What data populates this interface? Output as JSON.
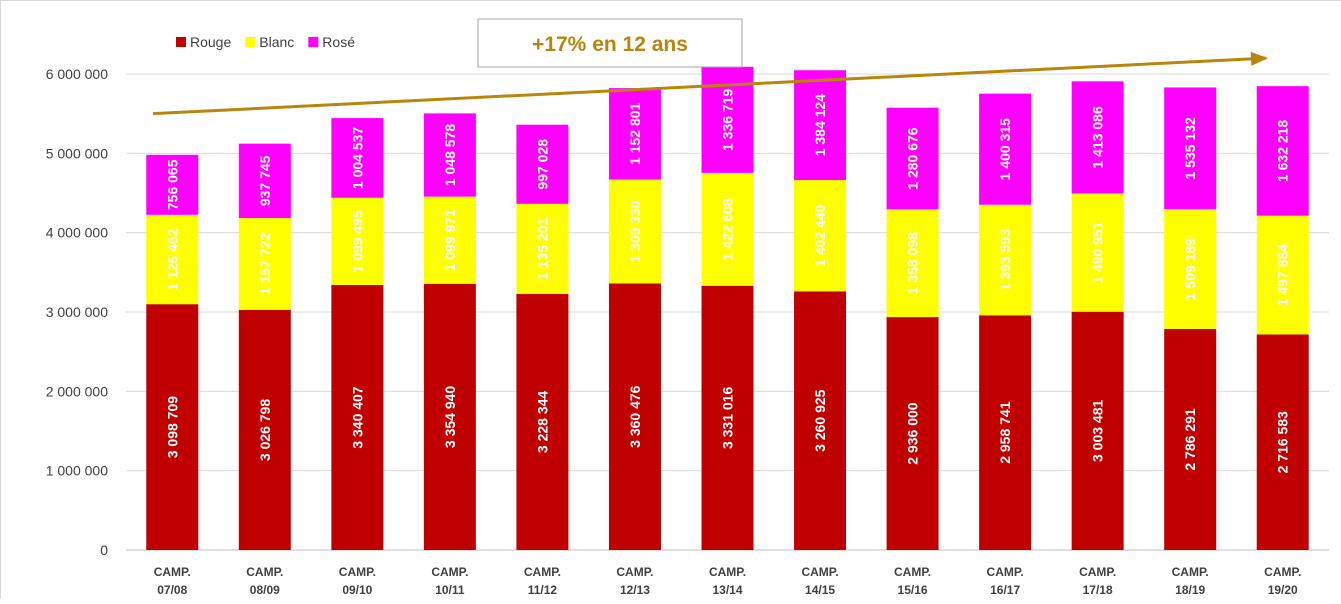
{
  "chart_data": {
    "type": "bar",
    "stacked": true,
    "categories": [
      "CAMP. 07/08",
      "CAMP. 08/09",
      "CAMP. 09/10",
      "CAMP. 10/11",
      "CAMP. 11/12",
      "CAMP. 12/13",
      "CAMP. 13/14",
      "CAMP. 14/15",
      "CAMP. 15/16",
      "CAMP. 16/17",
      "CAMP. 17/18",
      "CAMP. 18/19",
      "CAMP. 19/20"
    ],
    "series": [
      {
        "name": "Rouge",
        "color": "#c00000",
        "values": [
          3098709,
          3026798,
          3340407,
          3354940,
          3228344,
          3360476,
          3331016,
          3260925,
          2936000,
          2958741,
          3003481,
          2786291,
          2716583
        ],
        "labels": [
          "3 098 709",
          "3 026 798",
          "3 340 407",
          "3 354 940",
          "3 228 344",
          "3 360 476",
          "3 331 016",
          "3 260 925",
          "2 936 000",
          "2 958 741",
          "3 003 481",
          "2 786 291",
          "2 716 583"
        ]
      },
      {
        "name": "Blanc",
        "color": "#ffff00",
        "values": [
          1126462,
          1157722,
          1099495,
          1099971,
          1135201,
          1309330,
          1422608,
          1402440,
          1358098,
          1393593,
          1490951,
          1509189,
          1497884
        ],
        "labels": [
          "1 126 462",
          "1 157 722",
          "1 099 495",
          "1 099 971",
          "1 135 201",
          "1 309 330",
          "1 422 608",
          "1 402 440",
          "1 358 098",
          "1 393 593",
          "1 490 951",
          "1 509 189",
          "1 497 884"
        ]
      },
      {
        "name": "Rosé",
        "color": "#ff00ff",
        "values": [
          756065,
          937745,
          1004537,
          1048578,
          997028,
          1152801,
          1336719,
          1384124,
          1280676,
          1400315,
          1413086,
          1535132,
          1632218
        ],
        "labels": [
          "756 065",
          "937 745",
          "1 004 537",
          "1 048 578",
          "997 028",
          "1 152 801",
          "1 336 719",
          "1 384 124",
          "1 280 676",
          "1 400 315",
          "1 413 086",
          "1 535 132",
          "1 632 218"
        ]
      }
    ],
    "ylim": [
      0,
      6000000
    ],
    "yticks": [
      0,
      1000000,
      2000000,
      3000000,
      4000000,
      5000000,
      6000000
    ],
    "ytick_labels": [
      "0",
      "1 000 000",
      "2 000 000",
      "3 000 000",
      "4 000 000",
      "5 000 000",
      "6 000 000"
    ],
    "grid": true,
    "legend_position": "top-left",
    "annotation": {
      "text": "+17% en 12 ans",
      "color": "#b8860b",
      "trend_from": 5500000,
      "trend_to": 6200000
    }
  }
}
